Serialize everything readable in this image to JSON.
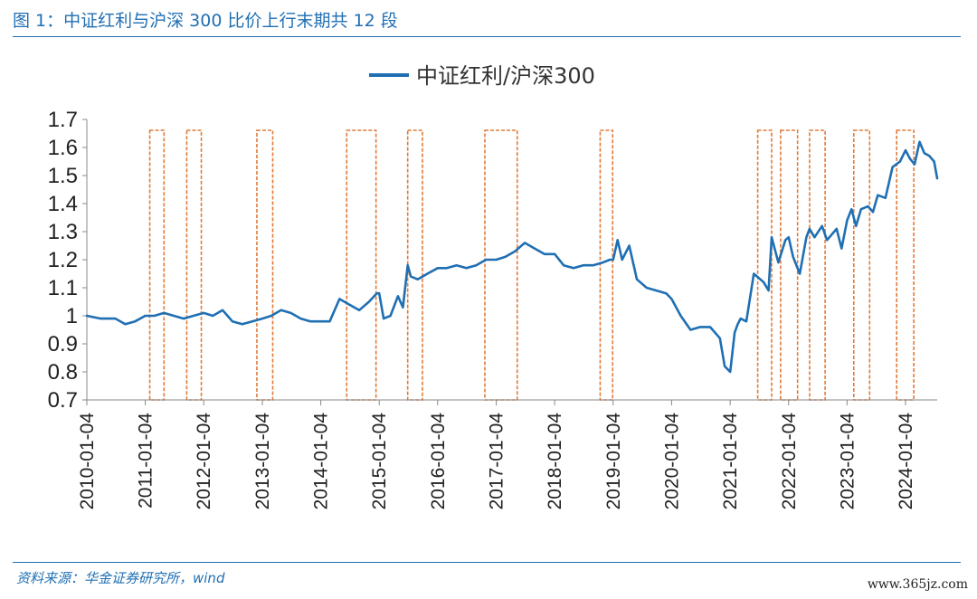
{
  "header": {
    "figure_title": "图 1：中证红利与沪深 300 比价上行末期共 12 段"
  },
  "footer": {
    "source": "资料来源：华金证券研究所，wind",
    "watermark": "www.365jz.com"
  },
  "colors": {
    "series": "#1f6fb3",
    "box": "#e07b3a",
    "rule": "#1f6fb3"
  },
  "chart_data": {
    "type": "line",
    "legend": {
      "position": "top-center"
    },
    "grid": false,
    "ylim": [
      0.7,
      1.7
    ],
    "yticks": [
      "1.7",
      "1.6",
      "1.5",
      "1.4",
      "1.3",
      "1.2",
      "1.1",
      "1",
      "0.9",
      "0.8",
      "0.7"
    ],
    "xlim": [
      "2010-01-04",
      "2024-07-20"
    ],
    "xticks": [
      "2010-01-04",
      "2011-01-04",
      "2012-01-04",
      "2013-01-04",
      "2014-01-04",
      "2015-01-04",
      "2016-01-04",
      "2017-01-04",
      "2018-01-04",
      "2019-01-04",
      "2020-01-04",
      "2021-01-04",
      "2022-01-04",
      "2023-01-04",
      "2024-01-04"
    ],
    "series": [
      {
        "name": "中证红利/沪深300",
        "x": [
          "2010-01-04",
          "2010-04-01",
          "2010-07-01",
          "2010-09-01",
          "2010-11-01",
          "2011-01-04",
          "2011-03-01",
          "2011-05-01",
          "2011-07-01",
          "2011-09-01",
          "2011-11-01",
          "2012-01-04",
          "2012-03-01",
          "2012-05-01",
          "2012-07-01",
          "2012-09-01",
          "2012-11-01",
          "2013-01-04",
          "2013-03-01",
          "2013-05-01",
          "2013-07-01",
          "2013-09-01",
          "2013-11-01",
          "2014-01-04",
          "2014-03-01",
          "2014-05-01",
          "2014-07-01",
          "2014-09-01",
          "2014-11-01",
          "2014-12-20",
          "2015-01-04",
          "2015-02-01",
          "2015-03-15",
          "2015-05-01",
          "2015-06-01",
          "2015-07-01",
          "2015-07-20",
          "2015-09-01",
          "2015-11-01",
          "2016-01-04",
          "2016-03-01",
          "2016-05-01",
          "2016-07-01",
          "2016-09-01",
          "2016-11-01",
          "2017-01-04",
          "2017-03-01",
          "2017-05-01",
          "2017-07-01",
          "2017-09-01",
          "2017-11-01",
          "2018-01-04",
          "2018-03-01",
          "2018-05-01",
          "2018-07-01",
          "2018-09-01",
          "2018-11-01",
          "2018-12-15",
          "2019-01-04",
          "2019-02-01",
          "2019-03-01",
          "2019-04-15",
          "2019-06-01",
          "2019-08-01",
          "2019-10-01",
          "2019-12-01",
          "2020-01-04",
          "2020-03-01",
          "2020-05-01",
          "2020-07-01",
          "2020-09-01",
          "2020-11-01",
          "2020-12-01",
          "2021-01-04",
          "2021-02-01",
          "2021-02-20",
          "2021-03-10",
          "2021-04-15",
          "2021-06-01",
          "2021-08-01",
          "2021-09-01",
          "2021-09-20",
          "2021-11-01",
          "2021-12-15",
          "2022-01-04",
          "2022-02-01",
          "2022-03-15",
          "2022-04-25",
          "2022-05-15",
          "2022-06-15",
          "2022-08-01",
          "2022-09-01",
          "2022-10-31",
          "2022-12-01",
          "2023-01-04",
          "2023-02-01",
          "2023-03-01",
          "2023-04-01",
          "2023-05-15",
          "2023-06-15",
          "2023-07-15",
          "2023-09-01",
          "2023-10-15",
          "2023-12-01",
          "2024-01-04",
          "2024-02-01",
          "2024-03-01",
          "2024-04-01",
          "2024-05-01",
          "2024-06-01",
          "2024-07-01",
          "2024-07-20"
        ],
        "values": [
          1.0,
          0.99,
          0.99,
          0.97,
          0.98,
          1.0,
          1.0,
          1.01,
          1.0,
          0.99,
          1.0,
          1.01,
          1.0,
          1.02,
          0.98,
          0.97,
          0.98,
          0.99,
          1.0,
          1.02,
          1.01,
          0.99,
          0.98,
          0.98,
          0.98,
          1.06,
          1.04,
          1.02,
          1.05,
          1.08,
          1.08,
          0.99,
          1.0,
          1.07,
          1.03,
          1.18,
          1.14,
          1.13,
          1.15,
          1.17,
          1.17,
          1.18,
          1.17,
          1.18,
          1.2,
          1.2,
          1.21,
          1.23,
          1.26,
          1.24,
          1.22,
          1.22,
          1.18,
          1.17,
          1.18,
          1.18,
          1.19,
          1.2,
          1.2,
          1.27,
          1.2,
          1.25,
          1.13,
          1.1,
          1.09,
          1.08,
          1.06,
          1.0,
          0.95,
          0.96,
          0.96,
          0.92,
          0.82,
          0.8,
          0.94,
          0.97,
          0.99,
          0.98,
          1.15,
          1.12,
          1.09,
          1.28,
          1.19,
          1.27,
          1.28,
          1.21,
          1.15,
          1.28,
          1.31,
          1.28,
          1.32,
          1.27,
          1.31,
          1.24,
          1.34,
          1.38,
          1.32,
          1.38,
          1.39,
          1.37,
          1.43,
          1.42,
          1.53,
          1.55,
          1.59,
          1.56,
          1.54,
          1.62,
          1.58,
          1.57,
          1.55,
          1.49
        ]
      }
    ],
    "highlight_ranges": [
      {
        "start": "2011-02-01",
        "end": "2011-05-01"
      },
      {
        "start": "2011-09-20",
        "end": "2011-12-20"
      },
      {
        "start": "2012-12-01",
        "end": "2013-03-10"
      },
      {
        "start": "2014-06-15",
        "end": "2014-12-15"
      },
      {
        "start": "2015-07-01",
        "end": "2015-10-01"
      },
      {
        "start": "2016-10-25",
        "end": "2017-05-15"
      },
      {
        "start": "2018-10-15",
        "end": "2019-01-01"
      },
      {
        "start": "2021-06-25",
        "end": "2021-09-20"
      },
      {
        "start": "2021-11-15",
        "end": "2022-03-01"
      },
      {
        "start": "2022-05-15",
        "end": "2022-08-20"
      },
      {
        "start": "2023-02-15",
        "end": "2023-05-25"
      },
      {
        "start": "2023-11-10",
        "end": "2024-02-25"
      }
    ]
  }
}
